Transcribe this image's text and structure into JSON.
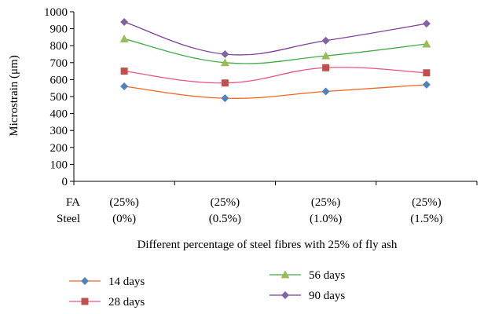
{
  "chart_data": {
    "type": "line",
    "ylabel": "Microstrain (μm)",
    "xlabel": "Different percentage of steel fibres with 25% of fly ash",
    "row_labels": [
      "FA",
      "Steel"
    ],
    "categories": [
      {
        "fa": "(25%)",
        "steel": "(0%)"
      },
      {
        "fa": "(25%)",
        "steel": "(0.5%)"
      },
      {
        "fa": "(25%)",
        "steel": "(1.0%)"
      },
      {
        "fa": "(25%)",
        "steel": "(1.5%)"
      }
    ],
    "ylim": [
      0,
      1000
    ],
    "yticks": [
      0,
      100,
      200,
      300,
      400,
      500,
      600,
      700,
      800,
      900,
      1000
    ],
    "grid": false,
    "legend_position": "bottom",
    "series": [
      {
        "name": "14 days",
        "values": [
          560,
          490,
          530,
          570
        ],
        "color": "#f26522",
        "marker_color": "#4f81bd",
        "marker": "diamond"
      },
      {
        "name": "28 days",
        "values": [
          650,
          580,
          670,
          640
        ],
        "color": "#e8547f",
        "marker_color": "#c0504d",
        "marker": "square"
      },
      {
        "name": "56 days",
        "values": [
          840,
          700,
          740,
          810
        ],
        "color": "#3fae49",
        "marker_color": "#9bbb59",
        "marker": "triangle"
      },
      {
        "name": "90 days",
        "values": [
          940,
          750,
          830,
          930
        ],
        "color": "#7d3f98",
        "marker_color": "#8064a2",
        "marker": "diamond"
      }
    ]
  }
}
